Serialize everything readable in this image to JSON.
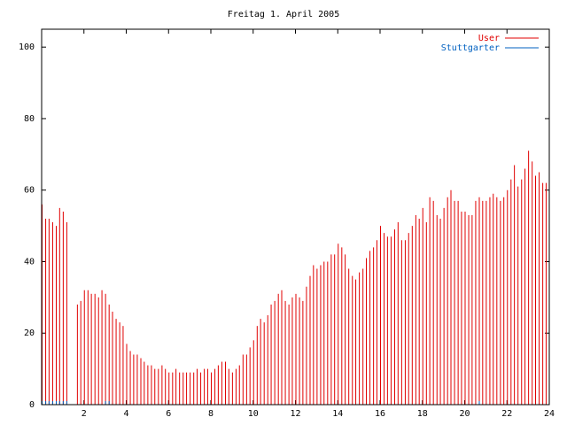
{
  "chart_data": {
    "type": "impulse",
    "title": "Freitag 1. April 2005",
    "xlim": [
      0,
      24
    ],
    "xticks": [
      2,
      4,
      6,
      8,
      10,
      12,
      14,
      16,
      18,
      20,
      22,
      24
    ],
    "ylim": [
      0,
      105
    ],
    "yticks": [
      0,
      20,
      40,
      60,
      80,
      100
    ],
    "legend": "top-right",
    "x": [
      0,
      0.17,
      0.33,
      0.5,
      0.67,
      0.83,
      1,
      1.17,
      1.33,
      1.5,
      1.67,
      1.83,
      2,
      2.17,
      2.33,
      2.5,
      2.67,
      2.83,
      3,
      3.17,
      3.33,
      3.5,
      3.67,
      3.83,
      4,
      4.17,
      4.33,
      4.5,
      4.67,
      4.83,
      5,
      5.17,
      5.33,
      5.5,
      5.67,
      5.83,
      6,
      6.17,
      6.33,
      6.5,
      6.67,
      6.83,
      7,
      7.17,
      7.33,
      7.5,
      7.67,
      7.83,
      8,
      8.17,
      8.33,
      8.5,
      8.67,
      8.83,
      9,
      9.17,
      9.33,
      9.5,
      9.67,
      9.83,
      10,
      10.17,
      10.33,
      10.5,
      10.67,
      10.83,
      11,
      11.17,
      11.33,
      11.5,
      11.67,
      11.83,
      12,
      12.17,
      12.33,
      12.5,
      12.67,
      12.83,
      13,
      13.17,
      13.33,
      13.5,
      13.67,
      13.83,
      14,
      14.17,
      14.33,
      14.5,
      14.67,
      14.83,
      15,
      15.17,
      15.33,
      15.5,
      15.67,
      15.83,
      16,
      16.17,
      16.33,
      16.5,
      16.67,
      16.83,
      17,
      17.17,
      17.33,
      17.5,
      17.67,
      17.83,
      18,
      18.17,
      18.33,
      18.5,
      18.67,
      18.83,
      19,
      19.17,
      19.33,
      19.5,
      19.67,
      19.83,
      20,
      20.17,
      20.33,
      20.5,
      20.67,
      20.83,
      21,
      21.17,
      21.33,
      21.5,
      21.67,
      21.83,
      22,
      22.17,
      22.33,
      22.5,
      22.67,
      22.83,
      23,
      23.17,
      23.33,
      23.5,
      23.67,
      23.83
    ],
    "series": [
      {
        "name": "User",
        "color": "#e00000",
        "values": [
          56,
          52,
          52,
          51,
          50,
          55,
          54,
          51,
          0,
          0,
          28,
          29,
          32,
          32,
          31,
          31,
          30,
          32,
          31,
          28,
          26,
          24,
          23,
          22,
          17,
          15,
          14,
          14,
          13,
          12,
          11,
          11,
          10,
          10,
          11,
          10,
          9,
          9,
          10,
          9,
          9,
          9,
          9,
          9,
          10,
          9,
          10,
          10,
          9,
          10,
          11,
          12,
          12,
          10,
          9,
          10,
          11,
          14,
          14,
          16,
          18,
          22,
          24,
          23,
          25,
          28,
          29,
          31,
          32,
          29,
          28,
          30,
          31,
          30,
          29,
          33,
          36,
          39,
          38,
          39,
          40,
          40,
          42,
          42,
          45,
          44,
          42,
          38,
          36,
          35,
          37,
          38,
          41,
          43,
          44,
          46,
          50,
          48,
          47,
          47,
          49,
          51,
          46,
          46,
          48,
          50,
          53,
          52,
          55,
          51,
          58,
          57,
          53,
          52,
          55,
          58,
          60,
          57,
          57,
          54,
          54,
          53,
          53,
          57,
          58,
          57,
          57,
          58,
          59,
          58,
          57,
          58,
          60,
          63,
          67,
          61,
          63,
          66,
          71,
          68,
          64,
          65,
          62,
          62
        ]
      },
      {
        "name": "Stuttgarter",
        "color": "#0060c0",
        "values": [
          1,
          1,
          1,
          1,
          1,
          1,
          1,
          1,
          0,
          0,
          0,
          0,
          0,
          0,
          0,
          0,
          0,
          0,
          1,
          1,
          0,
          0,
          0,
          0,
          0,
          0,
          0,
          0,
          0,
          0,
          0,
          0,
          0,
          0,
          0,
          0,
          0,
          0,
          0,
          0,
          0,
          0,
          0,
          0,
          0,
          0,
          0,
          0,
          0,
          0,
          0,
          0,
          0,
          0,
          0,
          0,
          0,
          0,
          0,
          0,
          0,
          0,
          0,
          0,
          0,
          0,
          0,
          0,
          0,
          0,
          0,
          0,
          0,
          0,
          0,
          0,
          0,
          0,
          0,
          0,
          0,
          0,
          0,
          0,
          0,
          0,
          0,
          0,
          0,
          0,
          0,
          0,
          0,
          0,
          0,
          0,
          0,
          0,
          0,
          0,
          0,
          0,
          0,
          0,
          0,
          0,
          0,
          0,
          0,
          0,
          0,
          0,
          0,
          0,
          0,
          0,
          0,
          0,
          0,
          0,
          0,
          0,
          0,
          0,
          1,
          0,
          0,
          0,
          0,
          0,
          0,
          0,
          0,
          0,
          0,
          0,
          0,
          0,
          0,
          0,
          0,
          0,
          0,
          0
        ]
      }
    ]
  }
}
